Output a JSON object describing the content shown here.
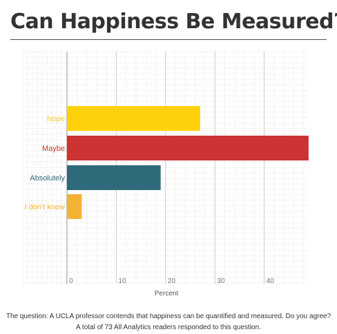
{
  "title": "Can Happiness Be Measured?",
  "caption": {
    "line1": "The question: A UCLA professor contends that happiness can be quantified and measured. Do you agree?",
    "line2": "A total of 73 All Analytics readers responded to this question."
  },
  "chart_data": {
    "type": "bar",
    "orientation": "horizontal",
    "categories": [
      "Nope",
      "Maybe",
      "Absolutely",
      "I don't know"
    ],
    "values": [
      27,
      49,
      19,
      3
    ],
    "colors": [
      "#ffd10a",
      "#cc3333",
      "#2d6b7a",
      "#f5b335"
    ],
    "xlabel": "Percent",
    "ylabel": "",
    "xlim": [
      0,
      49
    ],
    "xticks": [
      0,
      10,
      20,
      30,
      40
    ],
    "grid": "dotted",
    "legend": "none"
  }
}
